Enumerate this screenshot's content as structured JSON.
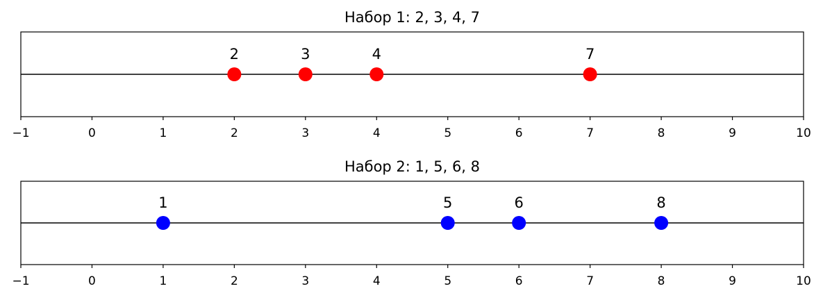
{
  "chart_data": [
    {
      "type": "scatter",
      "title": "Набор 1: 2, 3, 4, 7",
      "values": [
        2,
        3,
        4,
        7
      ],
      "color": "#ff0000",
      "xlim": [
        -1,
        10
      ],
      "xticks": [
        {
          "value": -1,
          "label": "−1"
        },
        0,
        1,
        2,
        3,
        4,
        5,
        6,
        7,
        8,
        9,
        10
      ]
    },
    {
      "type": "scatter",
      "title": "Набор 2: 1, 5, 6, 8",
      "values": [
        1,
        5,
        6,
        8
      ],
      "color": "#0000ff",
      "xlim": [
        -1,
        10
      ],
      "xticks": [
        {
          "value": -1,
          "label": "−1"
        },
        0,
        1,
        2,
        3,
        4,
        5,
        6,
        7,
        8,
        9,
        10
      ]
    }
  ]
}
